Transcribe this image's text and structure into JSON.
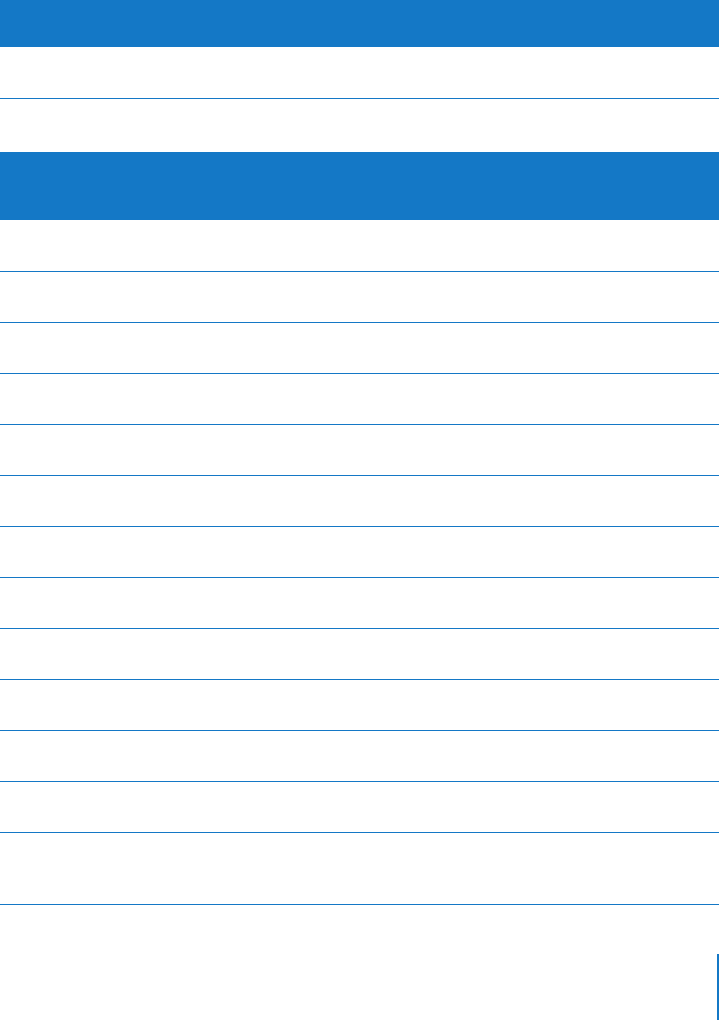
{
  "colors": {
    "accent": "#1478c6",
    "background": "#ffffff"
  },
  "table_1": {
    "header_band": true,
    "rows": 1
  },
  "table_2": {
    "header_band": true,
    "rows": 13
  }
}
